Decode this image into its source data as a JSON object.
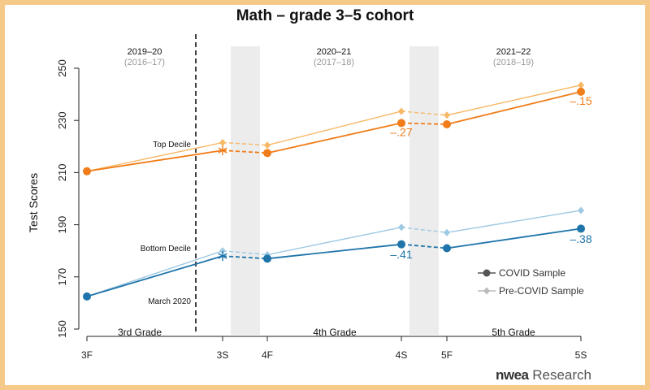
{
  "chart_data": {
    "type": "line",
    "title": "Math – grade 3–5 cohort",
    "ylabel": "Test Scores",
    "ylim": [
      150,
      250
    ],
    "yticks": [
      150,
      170,
      190,
      210,
      230,
      250
    ],
    "x_ticks": [
      "3F",
      "3S",
      "4F",
      "4S",
      "5F",
      "5S"
    ],
    "years": [
      {
        "label": "2019–20",
        "sub": "(2016–17)"
      },
      {
        "label": "2020–21",
        "sub": "(2017–18)"
      },
      {
        "label": "2021–22",
        "sub": "(2018–19)"
      }
    ],
    "grades": [
      "3rd Grade",
      "4th Grade",
      "5th Grade"
    ],
    "march_label": "March 2020",
    "decile_labels": {
      "top": "Top Decile",
      "bottom": "Bottom Decile"
    },
    "colors": {
      "top_covid": "#f07d19",
      "top_pre": "#f7b866",
      "bottom_covid": "#1f74aa",
      "bottom_pre": "#9ec9e2",
      "legend_covid": "#555555",
      "legend_pre": "#bbbbbb",
      "shade": "#ececec"
    },
    "series": [
      {
        "group": "top",
        "sample": "pre",
        "points": [
          [
            "3F",
            210.5
          ],
          [
            "3S",
            221.5
          ],
          [
            "4F",
            220.5
          ],
          [
            "4S",
            233.5
          ],
          [
            "5F",
            232.0
          ],
          [
            "5S",
            243.5
          ]
        ]
      },
      {
        "group": "top",
        "sample": "covid",
        "points": [
          [
            "3F",
            210.5
          ],
          [
            "3S",
            218.5
          ],
          [
            "4F",
            217.5
          ],
          [
            "4S",
            229.0
          ],
          [
            "5F",
            228.5
          ],
          [
            "5S",
            241.0
          ]
        ]
      },
      {
        "group": "bottom",
        "sample": "pre",
        "points": [
          [
            "3F",
            162.5
          ],
          [
            "3S",
            180.0
          ],
          [
            "4F",
            178.5
          ],
          [
            "4S",
            189.0
          ],
          [
            "5F",
            187.0
          ],
          [
            "5S",
            195.5
          ]
        ]
      },
      {
        "group": "bottom",
        "sample": "covid",
        "points": [
          [
            "3F",
            162.5
          ],
          [
            "3S",
            178.0
          ],
          [
            "4F",
            177.0
          ],
          [
            "4S",
            182.5
          ],
          [
            "5F",
            181.0
          ],
          [
            "5S",
            188.5
          ]
        ]
      }
    ],
    "effect_labels": [
      {
        "text": "–.27",
        "x": "4S",
        "y": 225.3,
        "group": "top"
      },
      {
        "text": "–.15",
        "x": "5S",
        "y": 237.3,
        "group": "top"
      },
      {
        "text": "–.41",
        "x": "4S",
        "y": 178.3,
        "group": "bottom"
      },
      {
        "text": "–.38",
        "x": "5S",
        "y": 184.3,
        "group": "bottom"
      }
    ],
    "legend": [
      {
        "label": "COVID Sample",
        "key": "covid"
      },
      {
        "label": "Pre-COVID Sample",
        "key": "pre"
      }
    ]
  },
  "logo": {
    "brand": "nwea",
    "suffix": "Research"
  }
}
